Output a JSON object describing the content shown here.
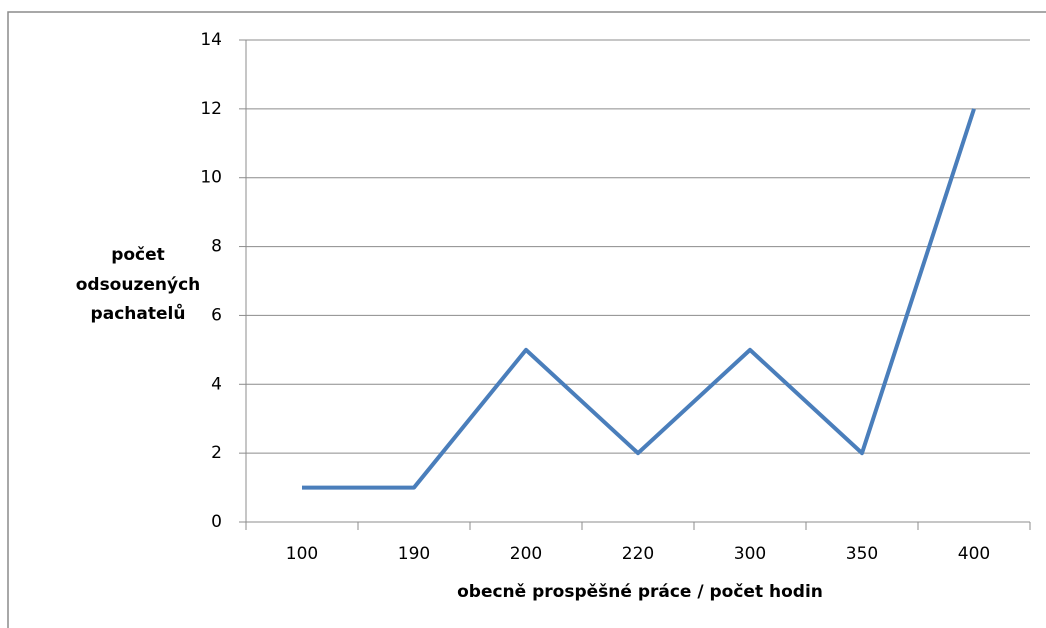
{
  "chart_data": {
    "type": "line",
    "xlabel": "obecně prospěšné práce / počet hodin",
    "ylabel": [
      "počet",
      "odsouzených",
      "pachatelů"
    ],
    "categories": [
      "100",
      "190",
      "200",
      "220",
      "300",
      "350",
      "400"
    ],
    "series": [
      {
        "color": "#4a7ebb",
        "values": [
          1,
          1,
          5,
          2,
          5,
          2,
          12
        ]
      }
    ],
    "ylim": [
      0,
      14
    ],
    "yticks": [
      0,
      2,
      4,
      6,
      8,
      10,
      12,
      14
    ],
    "grid": true
  }
}
